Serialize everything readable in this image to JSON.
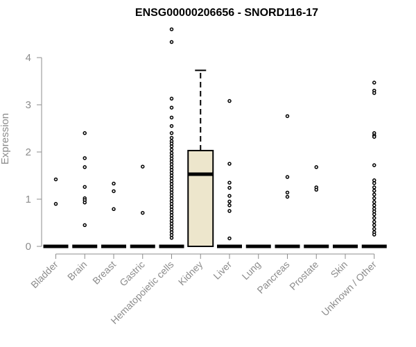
{
  "chart_data": {
    "type": "box",
    "title": "ENSG00000206656 - SNORD116-17",
    "xlabel": "",
    "ylabel": "Expression",
    "ylim": [
      0,
      4.6
    ],
    "yticks": [
      0,
      1,
      2,
      3,
      4
    ],
    "grid": false,
    "legend": "none",
    "colors": {
      "box_fill": "#ede6cc",
      "box_stroke": "#000000",
      "outlier": "#000000",
      "axis": "#8c8c8c"
    },
    "categories": [
      "Bladder",
      "Brain",
      "Breast",
      "Gastric",
      "Hematopoietic cells",
      "Kidney",
      "Liver",
      "Lung",
      "Pancreas",
      "Prostate",
      "Skin",
      "Unknown / Other"
    ],
    "boxes": [
      {
        "category": "Bladder",
        "q1": 0,
        "median": 0,
        "q3": 0,
        "whisker_low": 0,
        "whisker_high": 0,
        "outliers": [
          1.42,
          0.9
        ]
      },
      {
        "category": "Brain",
        "q1": 0,
        "median": 0,
        "q3": 0,
        "whisker_low": 0,
        "whisker_high": 0,
        "outliers": [
          2.4,
          1.87,
          1.68,
          1.26,
          1.02,
          0.98,
          0.93,
          0.45
        ]
      },
      {
        "category": "Breast",
        "q1": 0,
        "median": 0,
        "q3": 0,
        "whisker_low": 0,
        "whisker_high": 0,
        "outliers": [
          1.33,
          1.17,
          0.79
        ]
      },
      {
        "category": "Gastric",
        "q1": 0,
        "median": 0,
        "q3": 0,
        "whisker_low": 0,
        "whisker_high": 0,
        "outliers": [
          1.69,
          0.71
        ]
      },
      {
        "category": "Hematopoietic cells",
        "q1": 0,
        "median": 0,
        "q3": 0,
        "whisker_low": 0,
        "whisker_high": 0,
        "outliers": [
          4.6,
          4.33,
          3.13,
          2.94,
          2.73,
          2.55,
          2.4,
          2.3,
          2.23,
          2.18,
          2.12,
          2.05,
          1.98,
          1.92,
          1.86,
          1.8,
          1.74,
          1.68,
          1.62,
          1.56,
          1.5,
          1.44,
          1.38,
          1.32,
          1.26,
          1.2,
          1.14,
          1.08,
          1.02,
          0.96,
          0.9,
          0.84,
          0.78,
          0.72,
          0.66,
          0.6,
          0.54,
          0.48,
          0.42,
          0.36,
          0.3,
          0.24,
          0.18
        ]
      },
      {
        "category": "Kidney",
        "q1": 0,
        "median": 1.53,
        "q3": 2.03,
        "whisker_low": 0,
        "whisker_high": 3.73,
        "outliers": []
      },
      {
        "category": "Liver",
        "q1": 0,
        "median": 0,
        "q3": 0,
        "whisker_low": 0,
        "whisker_high": 0,
        "outliers": [
          3.08,
          1.75,
          1.35,
          1.24,
          1.07,
          0.95,
          0.87,
          0.75,
          0.17
        ]
      },
      {
        "category": "Lung",
        "q1": 0,
        "median": 0,
        "q3": 0,
        "whisker_low": 0,
        "whisker_high": 0,
        "outliers": []
      },
      {
        "category": "Pancreas",
        "q1": 0,
        "median": 0,
        "q3": 0,
        "whisker_low": 0,
        "whisker_high": 0,
        "outliers": [
          2.76,
          1.47,
          1.14,
          1.05
        ]
      },
      {
        "category": "Prostate",
        "q1": 0,
        "median": 0,
        "q3": 0,
        "whisker_low": 0,
        "whisker_high": 0,
        "outliers": [
          1.68,
          1.25,
          1.2
        ]
      },
      {
        "category": "Skin",
        "q1": 0,
        "median": 0,
        "q3": 0,
        "whisker_low": 0,
        "whisker_high": 0,
        "outliers": []
      },
      {
        "category": "Unknown / Other",
        "q1": 0,
        "median": 0,
        "q3": 0,
        "whisker_low": 0,
        "whisker_high": 0,
        "outliers": [
          3.47,
          3.3,
          3.25,
          2.4,
          2.35,
          2.32,
          1.72,
          1.4,
          1.34,
          1.25,
          1.18,
          1.1,
          1.02,
          0.94,
          0.87,
          0.8,
          0.74,
          0.68,
          0.6,
          0.52,
          0.45,
          0.37,
          0.3,
          0.25
        ]
      }
    ]
  }
}
